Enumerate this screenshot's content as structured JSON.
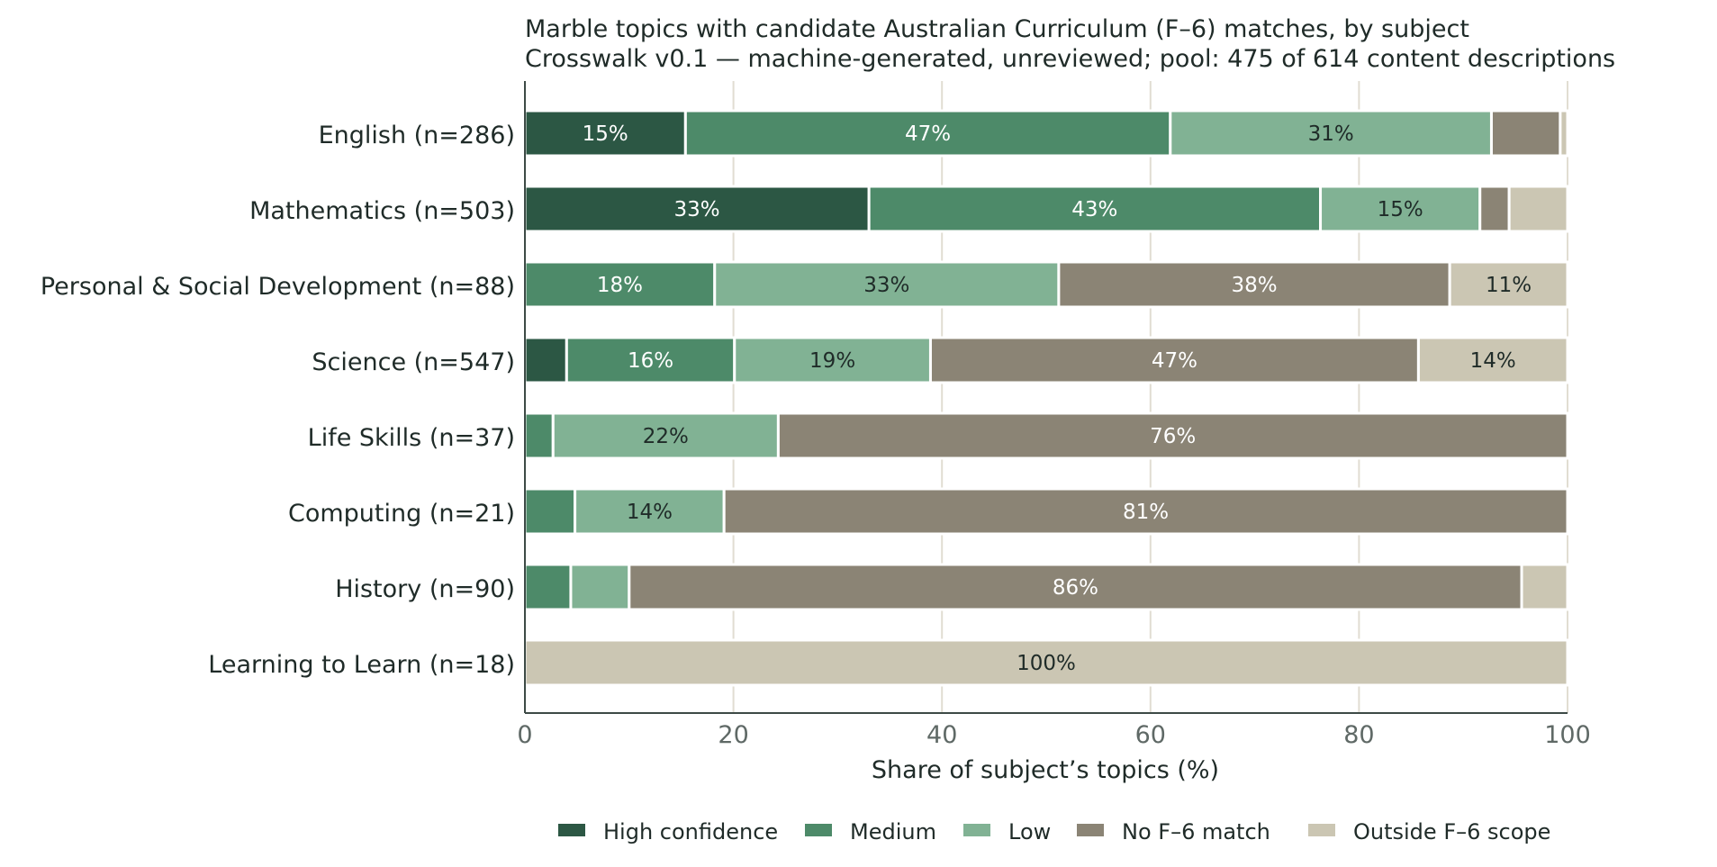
{
  "chart_data": {
    "type": "bar",
    "orientation": "horizontal",
    "stacked": true,
    "title": "Marble topics with candidate Australian Curriculum (F–6) matches, by subject",
    "subtitle": "Crosswalk v0.1 — machine-generated, unreviewed; pool: 475 of 614 content descriptions",
    "xlabel": "Share of subject’s topics (%)",
    "ylabel": "",
    "xlim": [
      0,
      100
    ],
    "xticks": [
      0,
      20,
      40,
      60,
      80,
      100
    ],
    "grid": "vertical",
    "legend_position": "bottom",
    "categories": [
      "English  (n=286)",
      "Mathematics  (n=503)",
      "Personal & Social Development  (n=88)",
      "Science  (n=547)",
      "Life Skills  (n=37)",
      "Computing  (n=21)",
      "History  (n=90)",
      "Learning to Learn  (n=18)"
    ],
    "series": [
      {
        "name": "High confidence",
        "color": "#2c5744",
        "label_color": "#ffffff",
        "values": [
          15.4,
          33.0,
          0.0,
          4.0,
          0.0,
          0.0,
          0.0,
          0.0
        ],
        "labels": [
          "15%",
          "33%",
          "",
          "",
          "",
          "",
          "",
          ""
        ]
      },
      {
        "name": "Medium",
        "color": "#4d8a69",
        "label_color": "#ffffff",
        "values": [
          46.5,
          43.3,
          18.2,
          16.1,
          2.7,
          4.8,
          4.4,
          0.0
        ],
        "labels": [
          "47%",
          "43%",
          "18%",
          "16%",
          "",
          "",
          "",
          ""
        ]
      },
      {
        "name": "Low",
        "color": "#81b294",
        "label_color": "#1f2b28",
        "values": [
          30.8,
          15.3,
          33.0,
          18.8,
          21.6,
          14.3,
          5.6,
          0.0
        ],
        "labels": [
          "31%",
          "15%",
          "33%",
          "19%",
          "22%",
          "14%",
          "",
          ""
        ]
      },
      {
        "name": "No F–6 match",
        "color": "#8b8475",
        "label_color": "#ffffff",
        "values": [
          6.6,
          2.8,
          37.5,
          46.8,
          75.7,
          80.9,
          85.6,
          0.0
        ],
        "labels": [
          "",
          "",
          "38%",
          "47%",
          "76%",
          "81%",
          "86%",
          ""
        ]
      },
      {
        "name": "Outside F–6 scope",
        "color": "#cbc6b3",
        "label_color": "#1f2b28",
        "values": [
          0.7,
          5.6,
          11.3,
          14.3,
          0.0,
          0.0,
          4.4,
          100.0
        ],
        "labels": [
          "",
          "",
          "11%",
          "14%",
          "",
          "",
          "",
          "100%"
        ]
      }
    ]
  },
  "colors": {
    "axis": "#3d4a46",
    "grid": "#e1ddd2",
    "text": "#1f2b28",
    "tick_text": "#5f6966"
  }
}
